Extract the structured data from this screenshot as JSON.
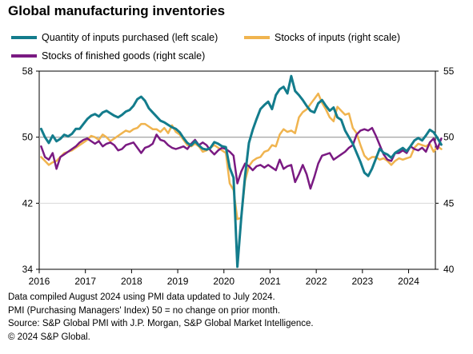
{
  "title": "Global manufacturing inventories",
  "colors": {
    "quantity": "#137c8c",
    "stocks_inputs": "#f0b44f",
    "finished": "#7a1a82",
    "grid": "#d9d9d9",
    "axis": "#000000",
    "reference_line": "#9e9e9e"
  },
  "footer": {
    "line1": "Data compiled August 2024 using PMI data updated to July 2024.",
    "line2": "PMI (Purchasing Managers' Index) 50 = no change on prior month.",
    "line3": "Source: S&P Global PMI with J.P. Morgan, S&P Global Market Intelligence.",
    "line4": "© 2024 S&P Global."
  },
  "chart_data": {
    "type": "line",
    "title": "Global manufacturing inventories",
    "x_ticks": [
      "2016",
      "2017",
      "2018",
      "2019",
      "2020",
      "2021",
      "2022",
      "2023",
      "2024"
    ],
    "left_axis": {
      "ylim": [
        34,
        58
      ],
      "ticks": [
        "58",
        "50",
        "42",
        "34"
      ]
    },
    "right_axis": {
      "ylim": [
        40,
        55
      ],
      "ticks": [
        "55",
        "50",
        "45",
        "40"
      ]
    },
    "reference_line": {
      "axis": "left",
      "value": 50
    },
    "legend_placement": "top",
    "series": [
      {
        "name": "Quantity of inputs purchased (left scale)",
        "axis": "left",
        "color_key": "quantity",
        "x_start": "2016-01",
        "values": [
          51.0,
          50.0,
          49.3,
          50.2,
          49.5,
          49.8,
          50.3,
          50.1,
          50.4,
          51.0,
          51.0,
          51.6,
          52.2,
          52.6,
          52.8,
          52.5,
          53.0,
          53.2,
          52.9,
          52.6,
          52.4,
          52.7,
          53.1,
          53.3,
          53.8,
          54.6,
          54.9,
          54.4,
          53.5,
          53.0,
          52.5,
          52.0,
          51.8,
          51.5,
          51.2,
          51.0,
          50.6,
          49.9,
          49.3,
          49.0,
          49.5,
          49.0,
          48.6,
          48.5,
          48.7,
          49.4,
          49.2,
          48.9,
          48.8,
          46.3,
          45.1,
          34.3,
          40.2,
          45.3,
          49.3,
          50.9,
          52.2,
          53.4,
          53.9,
          54.3,
          53.4,
          55.1,
          55.8,
          56.1,
          55.3,
          57.4,
          55.6,
          55.1,
          54.5,
          53.8,
          53.2,
          53.0,
          54.1,
          54.5,
          53.8,
          53.2,
          53.6,
          52.4,
          52.1,
          50.8,
          50.0,
          49.2,
          48.1,
          47.0,
          45.7,
          45.3,
          46.2,
          47.4,
          48.6,
          48.1,
          47.9,
          47.5,
          48.1,
          48.4,
          48.7,
          48.3,
          48.9,
          49.6,
          49.9,
          49.6,
          50.2,
          50.9,
          50.6,
          49.9,
          49.1
        ]
      },
      {
        "name": "Stocks of inputs (right scale)",
        "axis": "right",
        "color_key": "stocks_inputs",
        "x_start": "2016-01",
        "values": [
          48.5,
          48.2,
          47.9,
          48.1,
          48.2,
          48.5,
          48.8,
          48.9,
          49.0,
          49.2,
          49.4,
          49.6,
          49.8,
          50.1,
          50.0,
          49.8,
          50.2,
          50.0,
          49.7,
          49.9,
          50.1,
          50.3,
          50.5,
          50.4,
          50.6,
          50.7,
          51.0,
          51.0,
          50.8,
          50.6,
          50.6,
          50.4,
          50.7,
          50.3,
          50.9,
          50.4,
          50.2,
          49.8,
          49.4,
          49.3,
          49.5,
          49.3,
          48.9,
          49.0,
          49.2,
          49.4,
          49.2,
          49.0,
          48.8,
          46.5,
          46.0,
          43.8,
          43.9,
          46.7,
          47.8,
          48.2,
          48.4,
          48.5,
          48.9,
          49.0,
          49.4,
          49.3,
          50.2,
          50.6,
          50.4,
          50.5,
          50.3,
          51.5,
          51.9,
          52.1,
          52.5,
          52.9,
          53.3,
          52.6,
          52.1,
          51.5,
          51.2,
          52.3,
          52.0,
          51.7,
          51.8,
          50.7,
          50.3,
          49.4,
          48.6,
          48.3,
          48.5,
          48.5,
          48.3,
          48.4,
          48.2,
          47.9,
          48.2,
          48.4,
          48.3,
          48.4,
          48.5,
          49.2,
          49.5,
          49.4,
          49.3,
          49.5,
          48.9,
          49.3,
          49.1
        ]
      },
      {
        "name": "Stocks of finished goods (right scale)",
        "axis": "right",
        "color_key": "finished",
        "x_start": "2016-01",
        "values": [
          49.3,
          48.5,
          48.3,
          48.8,
          47.6,
          48.5,
          48.7,
          48.9,
          49.1,
          49.3,
          49.6,
          49.8,
          49.9,
          49.7,
          49.5,
          49.7,
          49.3,
          49.5,
          49.6,
          49.4,
          49.0,
          49.1,
          49.4,
          49.5,
          49.6,
          49.2,
          48.8,
          49.2,
          49.3,
          49.5,
          50.2,
          49.8,
          49.7,
          49.4,
          49.2,
          49.1,
          49.2,
          49.3,
          49.1,
          49.5,
          49.8,
          49.4,
          49.6,
          49.4,
          49.0,
          48.7,
          49.0,
          49.2,
          49.1,
          48.9,
          48.6,
          46.5,
          47.4,
          48.0,
          47.8,
          47.5,
          47.8,
          47.9,
          47.7,
          47.9,
          47.7,
          47.5,
          48.3,
          47.6,
          47.8,
          47.9,
          46.6,
          47.2,
          47.9,
          47.2,
          46.1,
          47.0,
          48.0,
          48.6,
          48.7,
          48.8,
          48.3,
          48.5,
          48.7,
          48.9,
          49.2,
          49.4,
          50.2,
          50.5,
          50.6,
          50.5,
          50.7,
          50.1,
          49.4,
          48.7,
          48.3,
          48.2,
          48.8,
          48.8,
          49.0,
          48.8,
          49.3,
          49.1,
          49.0,
          49.2,
          48.9,
          49.6,
          49.9,
          49.1,
          49.9
        ]
      }
    ]
  }
}
